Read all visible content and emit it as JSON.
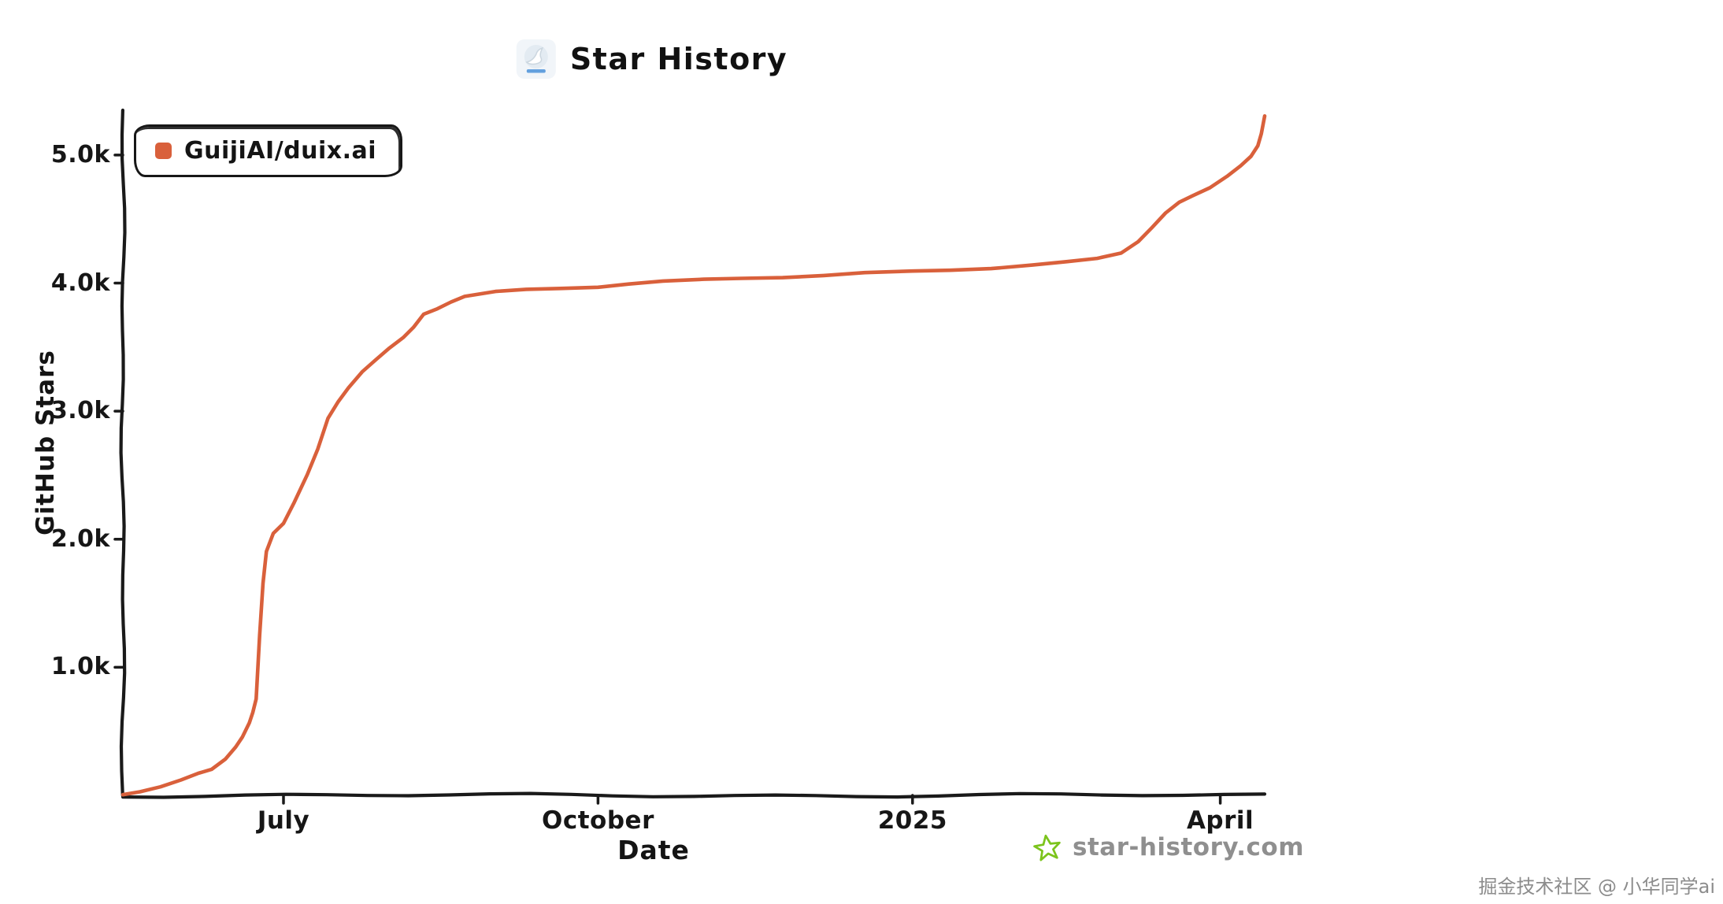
{
  "title": "Star History",
  "legend": {
    "label": "GuijiAI/duix.ai",
    "color": "#D9603B"
  },
  "axes": {
    "y_label": "GitHub Stars",
    "x_label": "Date"
  },
  "footer": {
    "brand": "star-history.com",
    "star_color": "#7CC41C"
  },
  "watermark": "掘金技术社区 @ 小华同学ai",
  "icons": {
    "logo": "star-history-custom-logo-icon",
    "brand_star": "green-star-icon"
  },
  "chart_data": {
    "type": "line",
    "title": "Star History",
    "xlabel": "Date",
    "ylabel": "GitHub Stars",
    "grid": false,
    "legend_position": "top-left",
    "x_range": [
      "2024-05-15",
      "2025-04-14"
    ],
    "ylim": [
      0,
      5350
    ],
    "line_color": "#D9603B",
    "axis_color": "#1A1A1A",
    "y_ticks": [
      {
        "value": 1000,
        "label": "1.0k"
      },
      {
        "value": 2000,
        "label": "2.0k"
      },
      {
        "value": 3000,
        "label": "3.0k"
      },
      {
        "value": 4000,
        "label": "4.0k"
      },
      {
        "value": 5000,
        "label": "5.0k"
      }
    ],
    "x_ticks": [
      {
        "date": "2024-07-01",
        "label": "July"
      },
      {
        "date": "2024-10-01",
        "label": "October"
      },
      {
        "date": "2025-01-01",
        "label": "2025"
      },
      {
        "date": "2025-04-01",
        "label": "April"
      }
    ],
    "series": [
      {
        "name": "GuijiAI/duix.ai",
        "color": "#D9603B",
        "points": [
          [
            "2024-05-15",
            5
          ],
          [
            "2024-05-20",
            35
          ],
          [
            "2024-05-26",
            70
          ],
          [
            "2024-06-01",
            115
          ],
          [
            "2024-06-06",
            165
          ],
          [
            "2024-06-10",
            205
          ],
          [
            "2024-06-14",
            290
          ],
          [
            "2024-06-17",
            380
          ],
          [
            "2024-06-19",
            450
          ],
          [
            "2024-06-21",
            560
          ],
          [
            "2024-06-22",
            650
          ],
          [
            "2024-06-23",
            760
          ],
          [
            "2024-06-24",
            1250
          ],
          [
            "2024-06-25",
            1650
          ],
          [
            "2024-06-26",
            1900
          ],
          [
            "2024-06-28",
            2050
          ],
          [
            "2024-07-01",
            2130
          ],
          [
            "2024-07-04",
            2280
          ],
          [
            "2024-07-08",
            2500
          ],
          [
            "2024-07-11",
            2700
          ],
          [
            "2024-07-14",
            2950
          ],
          [
            "2024-07-17",
            3080
          ],
          [
            "2024-07-20",
            3180
          ],
          [
            "2024-07-24",
            3300
          ],
          [
            "2024-07-28",
            3400
          ],
          [
            "2024-08-01",
            3500
          ],
          [
            "2024-08-05",
            3580
          ],
          [
            "2024-08-08",
            3650
          ],
          [
            "2024-08-11",
            3750
          ],
          [
            "2024-08-15",
            3800
          ],
          [
            "2024-08-19",
            3860
          ],
          [
            "2024-08-23",
            3900
          ],
          [
            "2024-09-01",
            3930
          ],
          [
            "2024-09-10",
            3945
          ],
          [
            "2024-09-20",
            3960
          ],
          [
            "2024-10-01",
            3975
          ],
          [
            "2024-10-10",
            3995
          ],
          [
            "2024-10-20",
            4010
          ],
          [
            "2024-11-01",
            4025
          ],
          [
            "2024-11-12",
            4040
          ],
          [
            "2024-11-24",
            4050
          ],
          [
            "2024-12-06",
            4060
          ],
          [
            "2024-12-18",
            4075
          ],
          [
            "2025-01-01",
            4090
          ],
          [
            "2025-01-12",
            4105
          ],
          [
            "2025-01-24",
            4120
          ],
          [
            "2025-02-05",
            4140
          ],
          [
            "2025-02-15",
            4160
          ],
          [
            "2025-02-24",
            4190
          ],
          [
            "2025-03-03",
            4240
          ],
          [
            "2025-03-08",
            4330
          ],
          [
            "2025-03-12",
            4430
          ],
          [
            "2025-03-16",
            4540
          ],
          [
            "2025-03-20",
            4630
          ],
          [
            "2025-03-24",
            4690
          ],
          [
            "2025-03-29",
            4750
          ],
          [
            "2025-04-03",
            4830
          ],
          [
            "2025-04-07",
            4910
          ],
          [
            "2025-04-10",
            4990
          ],
          [
            "2025-04-12",
            5080
          ],
          [
            "2025-04-13",
            5170
          ],
          [
            "2025-04-14",
            5300
          ]
        ]
      }
    ]
  }
}
